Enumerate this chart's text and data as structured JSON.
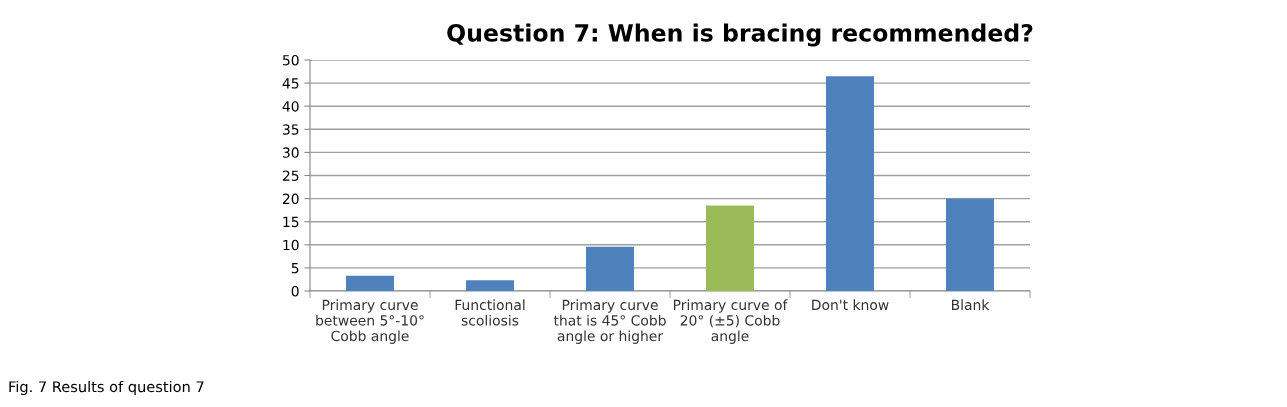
{
  "chart_data": {
    "type": "bar",
    "title": "Question 7: When is bracing recommended?",
    "categories": [
      "Primary curve\nbetween 5°-10°\nCobb angle",
      "Functional\nscoliosis",
      "Primary curve\nthat is 45° Cobb\nangle or higher",
      "Primary curve of\n20° (±5) Cobb\nangle",
      "Don't know",
      "Blank"
    ],
    "values": [
      3.3,
      2.3,
      9.6,
      18.5,
      46.5,
      20
    ],
    "colors": [
      "#4f81bd",
      "#4f81bd",
      "#4f81bd",
      "#9bbb59",
      "#4f81bd",
      "#4f81bd"
    ],
    "ylim": [
      0,
      50
    ],
    "yticks": [
      0,
      5,
      10,
      15,
      20,
      25,
      30,
      35,
      40,
      45,
      50
    ],
    "grid": "y",
    "annotations": [
      "Fig. 7 Results of question 7"
    ]
  }
}
